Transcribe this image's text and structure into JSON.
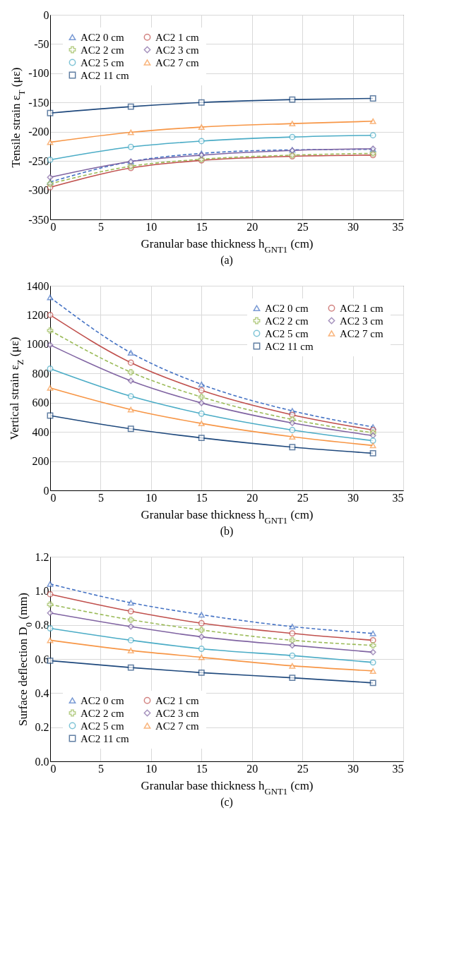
{
  "chart_data": [
    {
      "type": "line",
      "xlabel": "Granular base thickness h$_{GNT1}$ (cm)",
      "ylabel": "Tensile strain ε$_{T}$ (με)",
      "annotations": [
        "(a)"
      ],
      "x": [
        0,
        8,
        15,
        24,
        32
      ],
      "xlim": [
        0,
        35
      ],
      "xticks": [
        0,
        5,
        10,
        15,
        20,
        25,
        30,
        35
      ],
      "ylim": [
        -350,
        0
      ],
      "yticks": [
        -350,
        -300,
        -250,
        -200,
        -150,
        -100,
        -50,
        0
      ],
      "grid": true,
      "legend": "top left",
      "series": [
        {
          "name": "AC2  0 cm",
          "color": "#4472c4",
          "marker": "triangle",
          "line_style": "dashed",
          "values": [
            -286,
            -251,
            -237,
            -231,
            -230
          ]
        },
        {
          "name": "AC2  1 cm",
          "color": "#c0504d",
          "marker": "circle",
          "line_style": "solid",
          "values": [
            -295,
            -262,
            -249,
            -242,
            -240
          ]
        },
        {
          "name": "AC2  2 cm",
          "color": "#9bbb59",
          "marker": "cross",
          "line_style": "dashed",
          "values": [
            -289,
            -259,
            -247,
            -240,
            -237
          ]
        },
        {
          "name": "AC2  3 cm",
          "color": "#8064a2",
          "marker": "diamond",
          "line_style": "solid",
          "values": [
            -278,
            -251,
            -240,
            -232,
            -229
          ]
        },
        {
          "name": "AC2  5 cm",
          "color": "#4bacc6",
          "marker": "circle",
          "line_style": "solid",
          "values": [
            -248,
            -226,
            -216,
            -209,
            -206
          ]
        },
        {
          "name": "AC2  7 cm",
          "color": "#f79646",
          "marker": "triangle",
          "line_style": "solid",
          "values": [
            -218,
            -201,
            -192,
            -186,
            -182
          ]
        },
        {
          "name": "AC2  11 cm",
          "color": "#1f497d",
          "marker": "square",
          "line_style": "solid",
          "values": [
            -168,
            -157,
            -150,
            -145,
            -143
          ]
        }
      ]
    },
    {
      "type": "line",
      "xlabel": "Granular base thickness h$_{GNT1}$ (cm)",
      "ylabel": "Vertical strain ε$_{Z}$ (με)",
      "annotations": [
        "(b)"
      ],
      "x": [
        0,
        8,
        15,
        24,
        32
      ],
      "xlim": [
        0,
        35
      ],
      "xticks": [
        0,
        5,
        10,
        15,
        20,
        25,
        30,
        35
      ],
      "ylim": [
        0,
        1400
      ],
      "yticks": [
        0,
        200,
        400,
        600,
        800,
        1000,
        1200,
        1400
      ],
      "grid": true,
      "legend": "top right",
      "series": [
        {
          "name": "AC2  0 cm",
          "color": "#4472c4",
          "marker": "triangle",
          "line_style": "dashed",
          "values": [
            1320,
            941,
            725,
            544,
            434
          ]
        },
        {
          "name": "AC2  1 cm",
          "color": "#c0504d",
          "marker": "circle",
          "line_style": "solid",
          "values": [
            1200,
            874,
            684,
            517,
            413
          ]
        },
        {
          "name": "AC2  2 cm",
          "color": "#9bbb59",
          "marker": "cross",
          "line_style": "dashed",
          "values": [
            1094,
            809,
            639,
            485,
            394
          ]
        },
        {
          "name": "AC2  3 cm",
          "color": "#8064a2",
          "marker": "diamond",
          "line_style": "solid",
          "values": [
            995,
            750,
            598,
            461,
            375
          ]
        },
        {
          "name": "AC2  5 cm",
          "color": "#4bacc6",
          "marker": "circle",
          "line_style": "solid",
          "values": [
            833,
            644,
            525,
            413,
            340
          ]
        },
        {
          "name": "AC2  7 cm",
          "color": "#f79646",
          "marker": "triangle",
          "line_style": "solid",
          "values": [
            701,
            553,
            458,
            367,
            307
          ]
        },
        {
          "name": "AC2  11 cm",
          "color": "#1f497d",
          "marker": "square",
          "line_style": "solid",
          "values": [
            512,
            421,
            359,
            296,
            254
          ]
        }
      ]
    },
    {
      "type": "line",
      "xlabel": "Granular base thickness h$_{GNT1}$ (cm)",
      "ylabel": "Surface deflection D$_{0}$ (mm)",
      "annotations": [
        "(c)"
      ],
      "x": [
        0,
        8,
        15,
        24,
        32
      ],
      "xlim": [
        0,
        35
      ],
      "xticks": [
        0,
        5,
        10,
        15,
        20,
        25,
        30,
        35
      ],
      "ylim": [
        0,
        1.2
      ],
      "yticks": [
        {
          "value": 0,
          "label": "0.0"
        },
        {
          "value": 0.2,
          "label": "0.2"
        },
        {
          "value": 0.4,
          "label": "0.4"
        },
        {
          "value": 0.6,
          "label": "0.6"
        },
        {
          "value": 0.8,
          "label": "0.8"
        },
        {
          "value": 1,
          "label": "1.0"
        },
        {
          "value": 1.2,
          "label": "1.2"
        }
      ],
      "grid": true,
      "legend": "bottom left",
      "series": [
        {
          "name": "AC2  0 cm",
          "color": "#4472c4",
          "marker": "triangle",
          "line_style": "dashed",
          "values": [
            1.04,
            0.93,
            0.86,
            0.79,
            0.75
          ]
        },
        {
          "name": "AC2  1 cm",
          "color": "#c0504d",
          "marker": "circle",
          "line_style": "solid",
          "values": [
            0.98,
            0.88,
            0.81,
            0.75,
            0.71
          ]
        },
        {
          "name": "AC2  2 cm",
          "color": "#9bbb59",
          "marker": "cross",
          "line_style": "dashed",
          "values": [
            0.92,
            0.83,
            0.77,
            0.71,
            0.68
          ]
        },
        {
          "name": "AC2  3 cm",
          "color": "#8064a2",
          "marker": "diamond",
          "line_style": "solid",
          "values": [
            0.87,
            0.79,
            0.73,
            0.68,
            0.64
          ]
        },
        {
          "name": "AC2  5 cm",
          "color": "#4bacc6",
          "marker": "circle",
          "line_style": "solid",
          "values": [
            0.78,
            0.71,
            0.66,
            0.62,
            0.58
          ]
        },
        {
          "name": "AC2  7 cm",
          "color": "#f79646",
          "marker": "triangle",
          "line_style": "solid",
          "values": [
            0.71,
            0.65,
            0.61,
            0.56,
            0.53
          ]
        },
        {
          "name": "AC2  11 cm",
          "color": "#1f497d",
          "marker": "square",
          "line_style": "solid",
          "values": [
            0.59,
            0.55,
            0.52,
            0.49,
            0.46
          ]
        }
      ]
    }
  ]
}
